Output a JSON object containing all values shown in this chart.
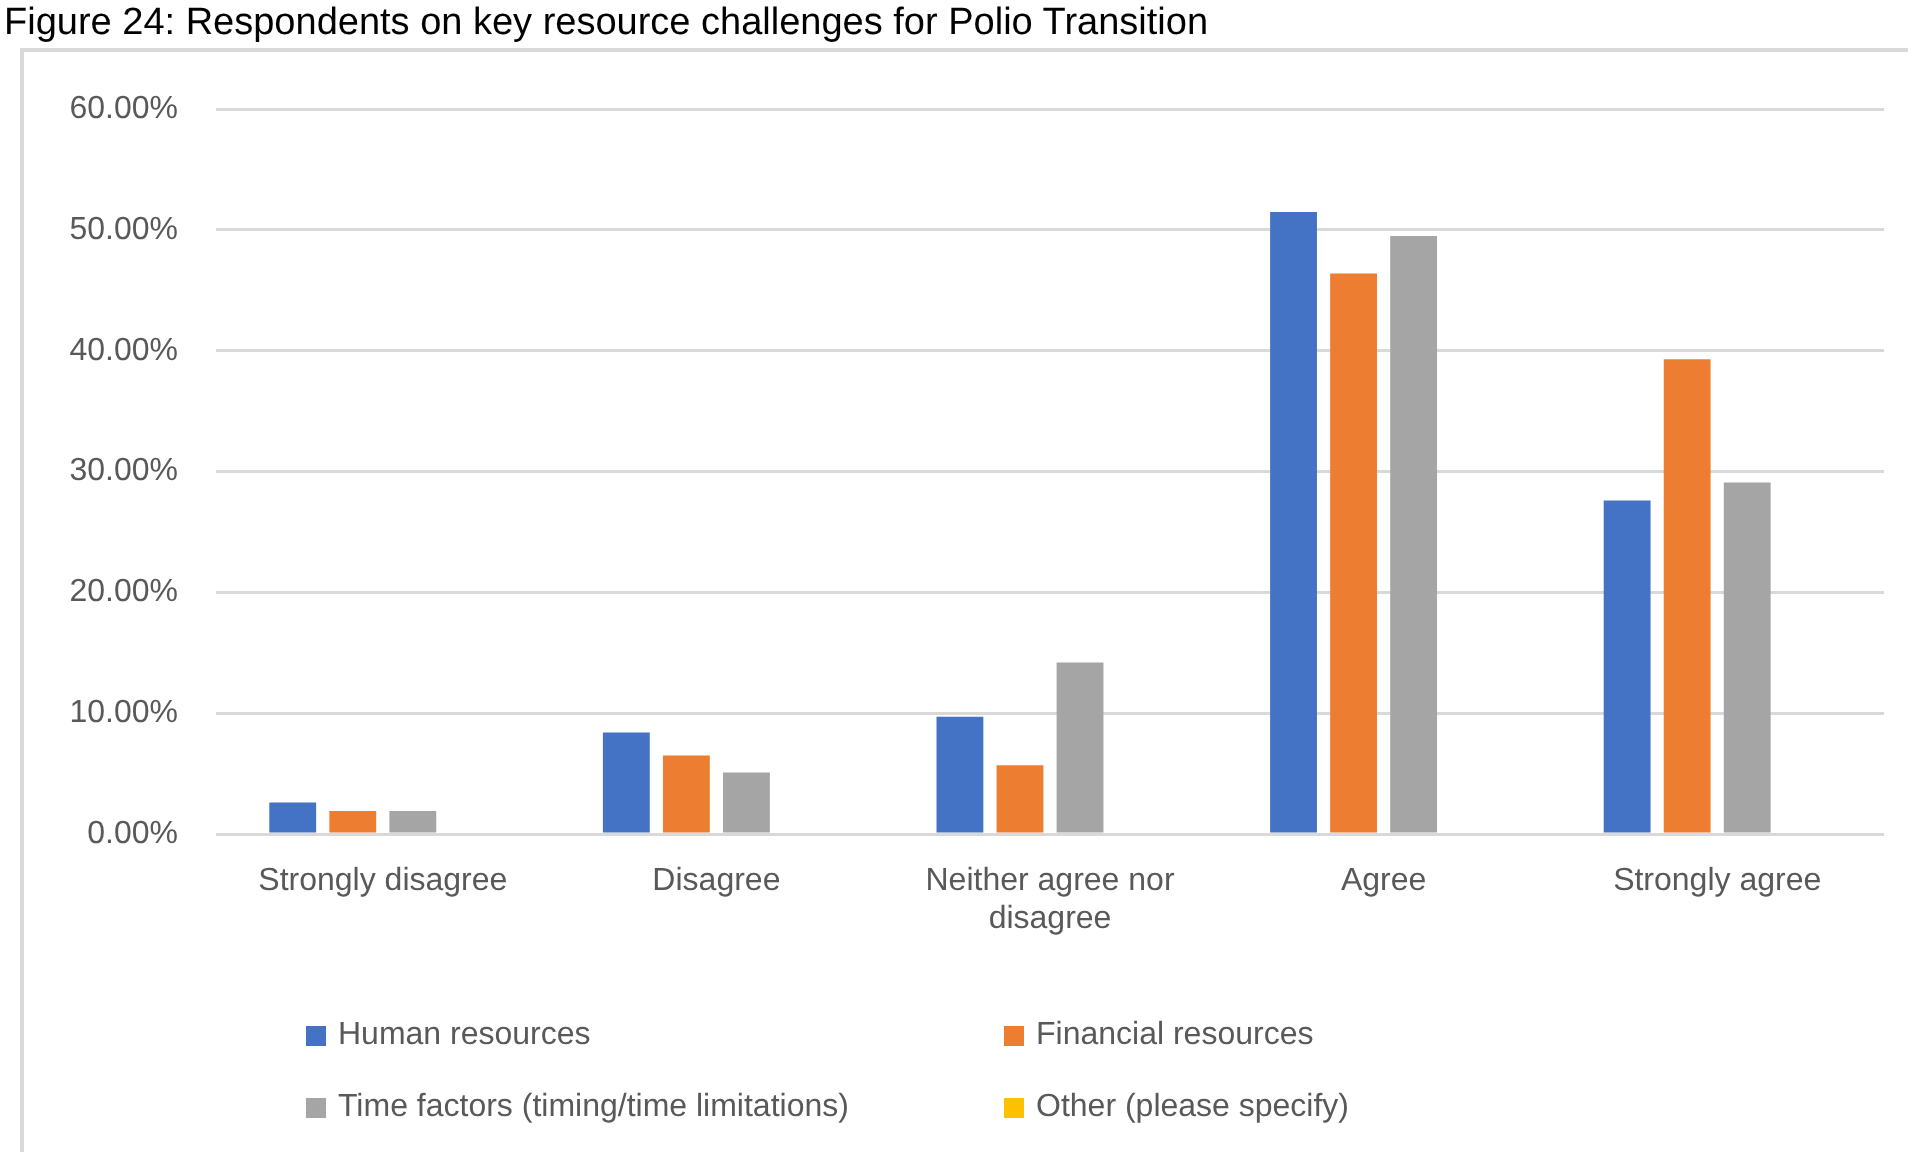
{
  "chart_data": {
    "type": "bar",
    "title": "Figure 24: Respondents on key resource challenges for Polio Transition",
    "categories": [
      "Strongly disagree",
      "Disagree",
      "Neither agree nor disagree",
      "Agree",
      "Strongly agree"
    ],
    "series": [
      {
        "name": "Human resources",
        "color": "#4472c4",
        "values": [
          2.6,
          8.4,
          9.7,
          51.5,
          27.6
        ]
      },
      {
        "name": "Financial resources",
        "color": "#ed7d31",
        "values": [
          1.9,
          6.5,
          5.7,
          46.4,
          39.3
        ]
      },
      {
        "name": "Time factors (timing/time limitations)",
        "color": "#a5a5a5",
        "values": [
          1.9,
          5.1,
          14.2,
          49.5,
          29.1
        ]
      },
      {
        "name": "Other (please specify)",
        "color": "#ffc000",
        "values": [
          0,
          0,
          0,
          0,
          0
        ]
      }
    ],
    "ylim": [
      0,
      60
    ],
    "yticks": [
      {
        "value": 0,
        "label": "0.00%"
      },
      {
        "value": 10,
        "label": "10.00%"
      },
      {
        "value": 20,
        "label": "20.00%"
      },
      {
        "value": 30,
        "label": "30.00%"
      },
      {
        "value": 40,
        "label": "40.00%"
      },
      {
        "value": 50,
        "label": "50.00%"
      },
      {
        "value": 60,
        "label": "60.00%"
      }
    ],
    "grid": "y",
    "legend": "bottom"
  }
}
